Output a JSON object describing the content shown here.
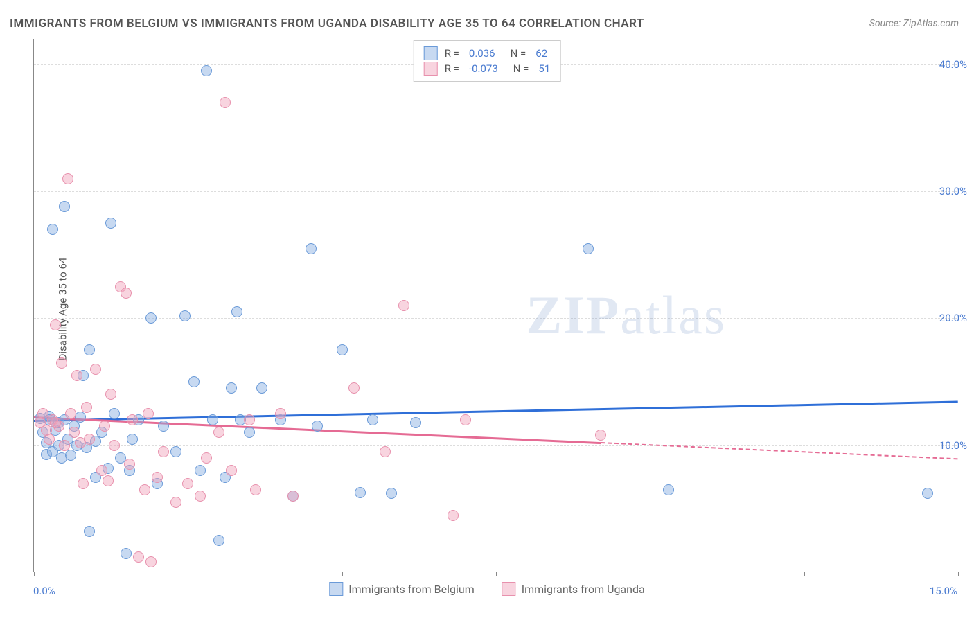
{
  "title": "IMMIGRANTS FROM BELGIUM VS IMMIGRANTS FROM UGANDA DISABILITY AGE 35 TO 64 CORRELATION CHART",
  "source": "Source: ZipAtlas.com",
  "y_axis_label": "Disability Age 35 to 64",
  "watermark_bold": "ZIP",
  "watermark_rest": "atlas",
  "chart": {
    "type": "scatter",
    "xlim": [
      0,
      15
    ],
    "ylim": [
      0,
      42
    ],
    "y_ticks": [
      10,
      20,
      30,
      40
    ],
    "y_tick_labels": [
      "10.0%",
      "20.0%",
      "30.0%",
      "40.0%"
    ],
    "x_tick_positions": [
      0,
      2.5,
      5,
      7.5,
      10,
      12.5,
      15
    ],
    "x_tick_labels_shown": {
      "left": "0.0%",
      "right": "15.0%"
    },
    "gridline_color": "#dddddd",
    "axis_color": "#888888",
    "background_color": "#ffffff",
    "marker_radius": 8,
    "marker_border": 1.5,
    "series": [
      {
        "name": "Immigrants from Belgium",
        "fill": "rgba(130,170,225,0.45)",
        "stroke": "#6a9ad8",
        "trend_color": "#2f6fd8",
        "r": 0.036,
        "n": 62,
        "r_label": "0.036",
        "n_label": "62",
        "trend_y_at_x0": 12.0,
        "trend_y_at_x15": 13.5,
        "trend_dash_after_x": 15,
        "points": [
          [
            0.1,
            12.1
          ],
          [
            0.15,
            11.0
          ],
          [
            0.2,
            10.2
          ],
          [
            0.2,
            9.3
          ],
          [
            0.25,
            12.3
          ],
          [
            0.3,
            27.0
          ],
          [
            0.3,
            9.5
          ],
          [
            0.35,
            11.2
          ],
          [
            0.4,
            10.0
          ],
          [
            0.4,
            11.8
          ],
          [
            0.45,
            9.0
          ],
          [
            0.5,
            12.0
          ],
          [
            0.5,
            28.8
          ],
          [
            0.55,
            10.5
          ],
          [
            0.6,
            9.2
          ],
          [
            0.65,
            11.5
          ],
          [
            0.7,
            10.0
          ],
          [
            0.75,
            12.2
          ],
          [
            0.8,
            15.5
          ],
          [
            0.85,
            9.8
          ],
          [
            0.9,
            3.2
          ],
          [
            0.9,
            17.5
          ],
          [
            1.0,
            10.3
          ],
          [
            1.0,
            7.5
          ],
          [
            1.1,
            11.0
          ],
          [
            1.2,
            8.2
          ],
          [
            1.25,
            27.5
          ],
          [
            1.3,
            12.5
          ],
          [
            1.4,
            9.0
          ],
          [
            1.5,
            1.5
          ],
          [
            1.55,
            8.0
          ],
          [
            1.6,
            10.5
          ],
          [
            1.7,
            12.0
          ],
          [
            1.9,
            20.0
          ],
          [
            2.0,
            7.0
          ],
          [
            2.1,
            11.5
          ],
          [
            2.3,
            9.5
          ],
          [
            2.45,
            20.2
          ],
          [
            2.6,
            15.0
          ],
          [
            2.7,
            8.0
          ],
          [
            2.8,
            39.5
          ],
          [
            2.9,
            12.0
          ],
          [
            3.0,
            2.5
          ],
          [
            3.1,
            7.5
          ],
          [
            3.2,
            14.5
          ],
          [
            3.3,
            20.5
          ],
          [
            3.35,
            12.0
          ],
          [
            3.5,
            11.0
          ],
          [
            3.7,
            14.5
          ],
          [
            4.0,
            12.0
          ],
          [
            4.2,
            6.0
          ],
          [
            4.5,
            25.5
          ],
          [
            4.6,
            11.5
          ],
          [
            5.0,
            17.5
          ],
          [
            5.3,
            6.3
          ],
          [
            5.5,
            12.0
          ],
          [
            5.8,
            6.2
          ],
          [
            6.2,
            11.8
          ],
          [
            9.0,
            25.5
          ],
          [
            10.3,
            6.5
          ],
          [
            14.5,
            6.2
          ],
          [
            0.25,
            12.0
          ]
        ]
      },
      {
        "name": "Immigrants from Uganda",
        "fill": "rgba(240,160,185,0.45)",
        "stroke": "#e891ad",
        "trend_color": "#e56b94",
        "r": -0.073,
        "n": 51,
        "r_label": "-0.073",
        "n_label": "51",
        "trend_y_at_x0": 12.3,
        "trend_y_at_x15": 9.0,
        "trend_dash_after_x": 9.2,
        "points": [
          [
            0.1,
            11.8
          ],
          [
            0.15,
            12.5
          ],
          [
            0.2,
            11.2
          ],
          [
            0.25,
            10.5
          ],
          [
            0.3,
            12.0
          ],
          [
            0.35,
            19.5
          ],
          [
            0.4,
            11.5
          ],
          [
            0.45,
            16.5
          ],
          [
            0.5,
            10.0
          ],
          [
            0.55,
            31.0
          ],
          [
            0.6,
            12.5
          ],
          [
            0.65,
            11.0
          ],
          [
            0.7,
            15.5
          ],
          [
            0.75,
            10.2
          ],
          [
            0.8,
            7.0
          ],
          [
            0.85,
            13.0
          ],
          [
            0.9,
            10.5
          ],
          [
            1.0,
            16.0
          ],
          [
            1.1,
            8.0
          ],
          [
            1.15,
            11.5
          ],
          [
            1.2,
            7.2
          ],
          [
            1.25,
            14.0
          ],
          [
            1.3,
            10.0
          ],
          [
            1.4,
            22.5
          ],
          [
            1.5,
            22.0
          ],
          [
            1.55,
            8.5
          ],
          [
            1.6,
            12.0
          ],
          [
            1.7,
            1.2
          ],
          [
            1.8,
            6.5
          ],
          [
            1.85,
            12.5
          ],
          [
            1.9,
            0.8
          ],
          [
            2.0,
            7.5
          ],
          [
            2.1,
            9.5
          ],
          [
            2.3,
            5.5
          ],
          [
            2.5,
            7.0
          ],
          [
            2.7,
            6.0
          ],
          [
            2.8,
            9.0
          ],
          [
            3.0,
            11.0
          ],
          [
            3.1,
            37.0
          ],
          [
            3.2,
            8.0
          ],
          [
            3.5,
            12.0
          ],
          [
            3.6,
            6.5
          ],
          [
            4.0,
            12.5
          ],
          [
            4.2,
            6.0
          ],
          [
            5.2,
            14.5
          ],
          [
            5.7,
            9.5
          ],
          [
            6.0,
            21.0
          ],
          [
            6.8,
            4.5
          ],
          [
            7.0,
            12.0
          ],
          [
            9.2,
            10.8
          ],
          [
            0.35,
            11.8
          ]
        ]
      }
    ]
  },
  "legend_top": {
    "rows": [
      {
        "r_prefix": "R =",
        "n_prefix": "N ="
      },
      {
        "r_prefix": "R =",
        "n_prefix": "N ="
      }
    ]
  }
}
